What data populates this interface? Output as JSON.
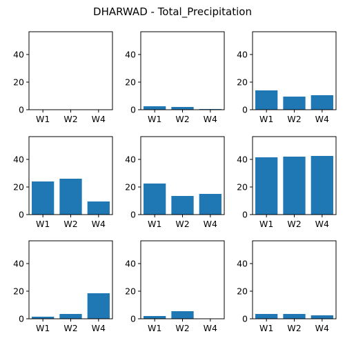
{
  "figure": {
    "title": "DHARWAD - Total_Precipitation"
  },
  "chart_data": {
    "type": "bar",
    "layout": "3x3 grid of subplots, shared y axis range",
    "categories": [
      "W1",
      "W2",
      "W4"
    ],
    "ylim": [
      0,
      56.5
    ],
    "yticks": [
      0,
      20,
      40
    ],
    "grid": false,
    "panels": [
      {
        "values": [
          0,
          0,
          0
        ]
      },
      {
        "values": [
          2.5,
          2.0,
          0.5
        ]
      },
      {
        "values": [
          14.0,
          9.5,
          10.5
        ]
      },
      {
        "values": [
          24.0,
          26.0,
          9.5
        ]
      },
      {
        "values": [
          22.5,
          13.5,
          15.0
        ]
      },
      {
        "values": [
          41.5,
          42.0,
          42.5
        ]
      },
      {
        "values": [
          1.5,
          3.5,
          18.5
        ]
      },
      {
        "values": [
          2.0,
          5.5,
          0
        ]
      },
      {
        "values": [
          3.5,
          3.5,
          2.5
        ]
      }
    ]
  },
  "colors": {
    "bar": "#1f77b4"
  }
}
